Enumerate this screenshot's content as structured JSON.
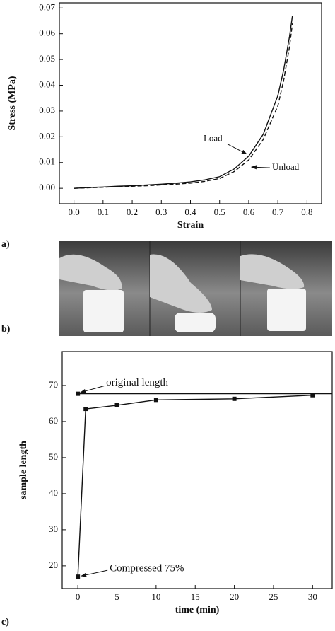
{
  "panel_labels": [
    "a)",
    "b)",
    "c)"
  ],
  "chart_data": [
    {
      "type": "line",
      "xlabel": "Strain",
      "ylabel": "Stress (MPa)",
      "xlim": [
        -0.05,
        0.85
      ],
      "ylim": [
        -0.006,
        0.072
      ],
      "xticks": [
        {
          "value": 0,
          "label": "0.0"
        },
        0.1,
        0.2,
        0.3,
        0.4,
        0.5,
        0.6,
        0.7,
        0.8
      ],
      "yticks": [
        {
          "value": 0,
          "label": "0.00"
        },
        0.01,
        0.02,
        0.03,
        0.04,
        0.05,
        0.06,
        0.07
      ],
      "x": [
        0,
        0.05,
        0.1,
        0.15,
        0.2,
        0.25,
        0.3,
        0.35,
        0.4,
        0.45,
        0.5,
        0.55,
        0.6,
        0.65,
        0.7,
        0.72,
        0.74,
        0.75
      ],
      "series": [
        {
          "name": "Load",
          "color": "#111111",
          "dash": false,
          "values": [
            0,
            0.0003,
            0.0005,
            0.0008,
            0.001,
            0.0013,
            0.0016,
            0.002,
            0.0025,
            0.0033,
            0.0045,
            0.0075,
            0.0125,
            0.021,
            0.036,
            0.046,
            0.059,
            0.067
          ]
        },
        {
          "name": "Unload",
          "color": "#111111",
          "dash": true,
          "values": [
            0,
            0.0002,
            0.0004,
            0.0006,
            0.0008,
            0.001,
            0.0013,
            0.0016,
            0.002,
            0.0027,
            0.0038,
            0.0065,
            0.011,
            0.019,
            0.032,
            0.042,
            0.055,
            0.064
          ]
        }
      ]
    },
    {
      "type": "line",
      "xlabel": "time (min)",
      "ylabel": "sample length",
      "xlim": [
        -2,
        32.5
      ],
      "ylim": [
        13.7,
        79.4
      ],
      "xticks": [
        0,
        5,
        10,
        15,
        20,
        25,
        30
      ],
      "yticks": [
        20,
        30,
        40,
        50,
        60,
        70
      ],
      "x": [
        0,
        1,
        5,
        10,
        20,
        30
      ],
      "marker": "square",
      "series": [
        {
          "color": "#111111",
          "dash": false,
          "values": [
            17,
            63.5,
            64.5,
            66,
            66.3,
            67.3
          ]
        }
      ],
      "reference": {
        "x": 0,
        "value": 67.7,
        "label": "original length"
      },
      "annotation": "Compressed 75%"
    }
  ]
}
